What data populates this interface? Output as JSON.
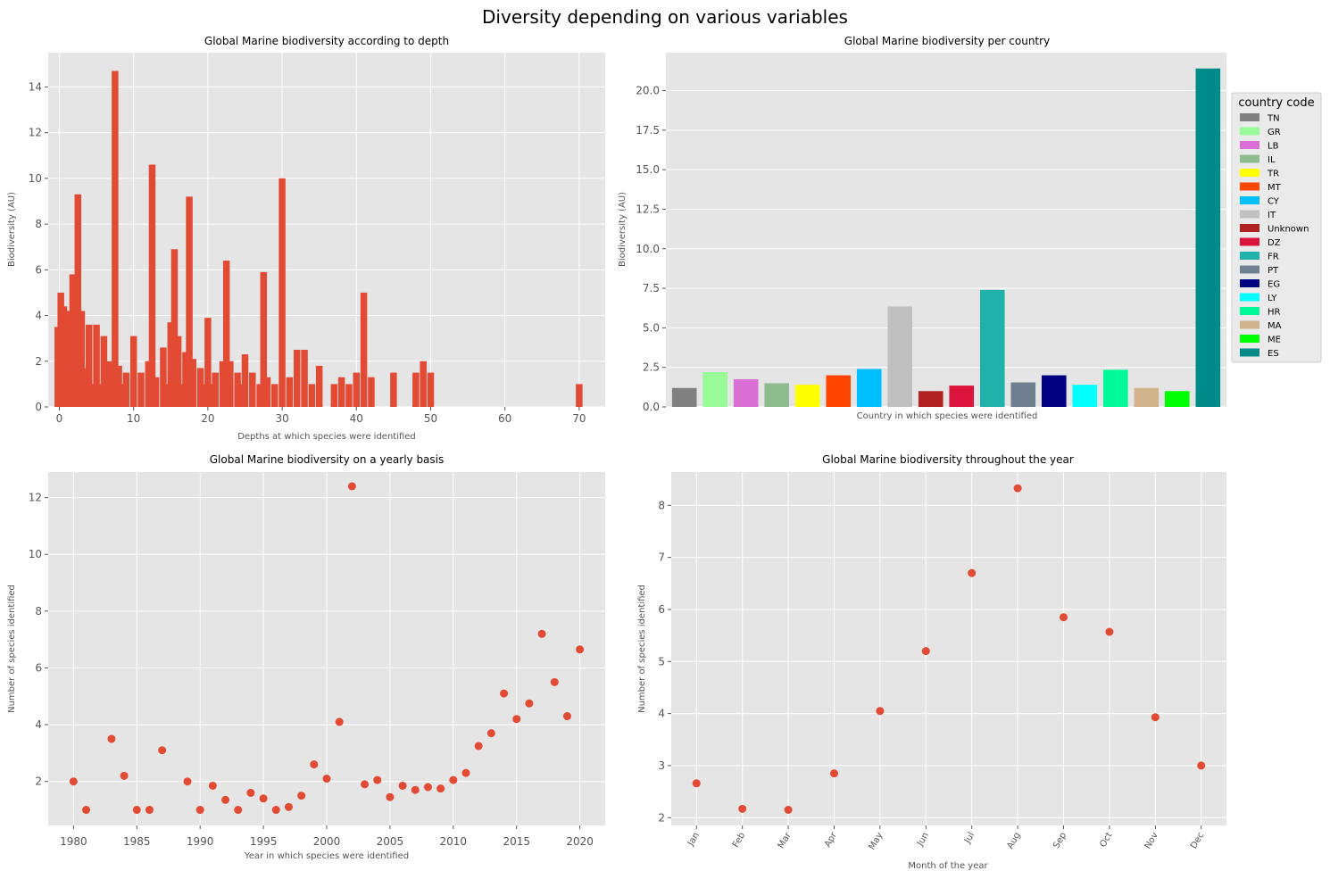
{
  "figure": {
    "suptitle": "Diversity depending on various variables"
  },
  "chart_data": [
    {
      "type": "bar",
      "title": "Global Marine biodiversity according to depth",
      "xlabel": "Depths at which species were identified",
      "ylabel": "Biodiversity (AU)",
      "xlim": [
        -1.5,
        73.5
      ],
      "ylim": [
        0,
        15.5
      ],
      "xticks": [
        0,
        10,
        20,
        30,
        40,
        50,
        60,
        70
      ],
      "yticks": [
        0,
        2,
        4,
        6,
        8,
        10,
        12,
        14
      ],
      "bar_width": 0.9,
      "color": "#E24A33",
      "x": [
        -0.2,
        0.2,
        0.6,
        1.0,
        1.5,
        1.8,
        2.5,
        3.0,
        3.5,
        4.0,
        4.5,
        5.0,
        5.5,
        6.0,
        6.6,
        7.0,
        7.5,
        8.0,
        8.5,
        9.0,
        10.0,
        11.0,
        12.0,
        12.5,
        13.0,
        14.0,
        14.5,
        15.0,
        15.5,
        16.0,
        16.5,
        17.0,
        17.5,
        18.0,
        19.0,
        19.5,
        20.0,
        20.5,
        21.0,
        22.0,
        22.5,
        23.0,
        24.0,
        24.5,
        25.0,
        26.0,
        27.0,
        27.5,
        28.0,
        29.0,
        30.0,
        31.0,
        32.0,
        33.0,
        34.0,
        35.0,
        37.0,
        38.0,
        39.0,
        40.0,
        41.0,
        42.0,
        45.0,
        48.0,
        49.0,
        50.0,
        70.0
      ],
      "values": [
        3.5,
        5.0,
        4.4,
        4.2,
        2.0,
        5.8,
        9.3,
        4.2,
        1.7,
        3.6,
        1.0,
        3.6,
        1.0,
        3.1,
        2.0,
        1.9,
        14.7,
        1.8,
        1.0,
        1.5,
        3.1,
        1.5,
        2.0,
        10.6,
        1.3,
        2.6,
        1.0,
        3.7,
        6.9,
        3.1,
        1.0,
        2.4,
        9.2,
        2.1,
        1.7,
        1.0,
        3.9,
        1.0,
        1.5,
        2.0,
        6.4,
        2.0,
        1.5,
        1.0,
        2.3,
        1.5,
        1.0,
        5.9,
        1.3,
        1.0,
        10.0,
        1.3,
        2.5,
        2.5,
        1.0,
        1.8,
        1.0,
        1.3,
        1.0,
        1.5,
        5.0,
        1.3,
        1.5,
        1.5,
        2.0,
        1.5,
        1.0
      ]
    },
    {
      "type": "bar",
      "title": "Global Marine biodiversity per country",
      "xlabel": "Country in which species were identified",
      "ylabel": "Biodiversity (AU)",
      "ylim": [
        0,
        22.4
      ],
      "yticks": [
        0.0,
        2.5,
        5.0,
        7.5,
        10.0,
        12.5,
        15.0,
        17.5,
        20.0
      ],
      "ytick_labels": [
        "0.0",
        "2.5",
        "5.0",
        "7.5",
        "10.0",
        "12.5",
        "15.0",
        "17.5",
        "20.0"
      ],
      "legend_title": "country code",
      "legend_position": "right-outside",
      "categories": [
        "TN",
        "GR",
        "LB",
        "IL",
        "TR",
        "MT",
        "CY",
        "IT",
        "Unknown",
        "DZ",
        "FR",
        "PT",
        "EG",
        "LY",
        "HR",
        "MA",
        "ME",
        "ES"
      ],
      "values": [
        1.2,
        2.2,
        1.75,
        1.5,
        1.4,
        2.0,
        2.4,
        6.35,
        1.0,
        1.35,
        7.4,
        1.55,
        2.0,
        1.4,
        2.35,
        1.2,
        1.0,
        21.4
      ],
      "colors": [
        "#808080",
        "#98FB98",
        "#DA70D6",
        "#8FBC8F",
        "#FFFF00",
        "#FF4500",
        "#00BFFF",
        "#C0C0C0",
        "#B22222",
        "#DC143C",
        "#20B2AA",
        "#708090",
        "#000080",
        "#00FFFF",
        "#00FA9A",
        "#D2B48C",
        "#00FF00",
        "#008B8B"
      ]
    },
    {
      "type": "scatter",
      "title": "Global Marine biodiversity on a yearly basis",
      "xlabel": "Year in which species were identified",
      "ylabel": "Number of species identified",
      "xlim": [
        1978,
        2022
      ],
      "ylim": [
        0.45,
        12.9
      ],
      "xticks": [
        1980,
        1985,
        1990,
        1995,
        2000,
        2005,
        2010,
        2015,
        2020
      ],
      "yticks": [
        2,
        4,
        6,
        8,
        10,
        12
      ],
      "color": "#E24A33",
      "x": [
        1980,
        1981,
        1983,
        1984,
        1985,
        1986,
        1987,
        1989,
        1990,
        1991,
        1992,
        1993,
        1994,
        1995,
        1996,
        1997,
        1998,
        1999,
        2000,
        2001,
        2002,
        2003,
        2004,
        2005,
        2006,
        2007,
        2008,
        2009,
        2010,
        2011,
        2012,
        2013,
        2014,
        2015,
        2016,
        2017,
        2018,
        2019,
        2020
      ],
      "y": [
        2.0,
        1.0,
        3.5,
        2.2,
        1.0,
        1.0,
        3.1,
        2.0,
        1.0,
        1.85,
        1.35,
        1.0,
        1.6,
        1.4,
        1.0,
        1.1,
        1.5,
        2.6,
        2.1,
        4.1,
        12.4,
        1.9,
        2.05,
        1.45,
        1.85,
        1.7,
        1.8,
        1.75,
        2.05,
        2.3,
        3.25,
        3.7,
        5.1,
        4.2,
        4.75,
        7.2,
        5.5,
        4.3,
        6.65
      ]
    },
    {
      "type": "scatter",
      "title": "Global Marine biodiversity throughout the year",
      "xlabel": "Month of the year",
      "ylabel": "Number of species identified",
      "ylim": [
        1.85,
        8.64
      ],
      "yticks": [
        2,
        3,
        4,
        5,
        6,
        7,
        8
      ],
      "color": "#E24A33",
      "categories": [
        "Jan",
        "Feb",
        "Mar",
        "Apr",
        "May",
        "Jun",
        "Jul",
        "Aug",
        "Sep",
        "Oct",
        "Nov",
        "Dec"
      ],
      "y": [
        2.66,
        2.17,
        2.15,
        2.85,
        4.05,
        5.2,
        6.7,
        8.33,
        5.85,
        5.57,
        3.93,
        3.0
      ]
    }
  ]
}
